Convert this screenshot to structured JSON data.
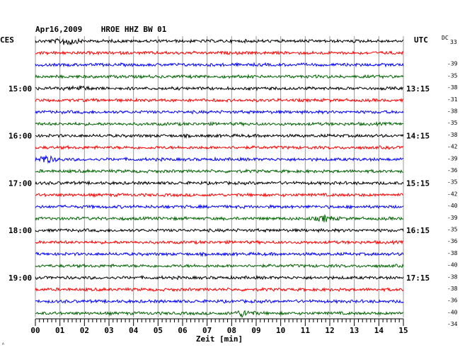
{
  "chart_data": {
    "type": "line",
    "title": "Apr16,2009    HROE HHZ BW 01",
    "left_unit": "CES",
    "right_unit": "UTC",
    "dc_label": "DC",
    "dc_value_label": "33",
    "xlabel": "Zeit [min]",
    "xlim": [
      0,
      15
    ],
    "x_ticks": [
      "00",
      "01",
      "02",
      "03",
      "04",
      "05",
      "06",
      "07",
      "08",
      "09",
      "10",
      "11",
      "12",
      "13",
      "14",
      "15"
    ],
    "trace_colors": [
      "#000000",
      "#ff0000",
      "#0000ff",
      "#006400"
    ],
    "grid": true,
    "rows": 24,
    "left_time_labels": [
      {
        "row": 4,
        "label": "15:00"
      },
      {
        "row": 8,
        "label": "16:00"
      },
      {
        "row": 12,
        "label": "17:00"
      },
      {
        "row": 16,
        "label": "18:00"
      },
      {
        "row": 20,
        "label": "19:00"
      }
    ],
    "right_time_labels": [
      {
        "row": 4,
        "label": "13:15"
      },
      {
        "row": 8,
        "label": "14:15"
      },
      {
        "row": 12,
        "label": "15:15"
      },
      {
        "row": 16,
        "label": "16:15"
      },
      {
        "row": 20,
        "label": "17:15"
      }
    ],
    "dc_offsets": [
      "",
      "-39",
      "-35",
      "-38",
      "-31",
      "-38",
      "-35",
      "-38",
      "-42",
      "-39",
      "-36",
      "-35",
      "-42",
      "-40",
      "-39",
      "-35",
      "-36",
      "-38",
      "-40",
      "-38",
      "-38",
      "-36",
      "-40",
      "-34"
    ],
    "events": [
      {
        "row": 0,
        "minute": 1.3,
        "amplitude": 7
      },
      {
        "row": 4,
        "minute": 1.8,
        "amplitude": 3
      },
      {
        "row": 10,
        "minute": 0.4,
        "amplitude": 6
      },
      {
        "row": 15,
        "minute": 11.8,
        "amplitude": 4
      },
      {
        "row": 23,
        "minute": 8.5,
        "amplitude": 5
      }
    ],
    "corner_mark": "ᴬ"
  }
}
